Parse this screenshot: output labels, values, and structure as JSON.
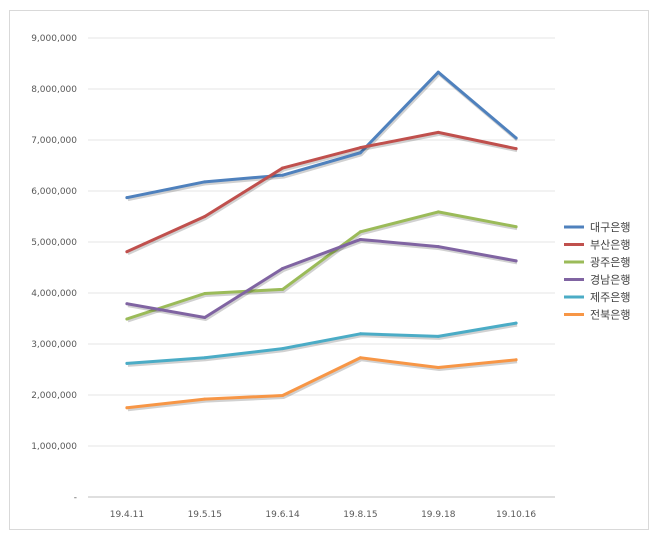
{
  "chart_data": {
    "type": "line",
    "title": "",
    "xlabel": "",
    "ylabel": "",
    "categories": [
      "19.4.11",
      "19.5.15",
      "19.6.14",
      "19.8.15",
      "19.9.18",
      "19.10.16"
    ],
    "ylim": [
      0,
      9000000
    ],
    "yticks": [
      0,
      1000000,
      2000000,
      3000000,
      4000000,
      5000000,
      6000000,
      7000000,
      8000000,
      9000000
    ],
    "ytick_labels": [
      "-",
      "1,000,000",
      "2,000,000",
      "3,000,000",
      "4,000,000",
      "5,000,000",
      "6,000,000",
      "7,000,000",
      "8,000,000",
      "9,000,000"
    ],
    "grid": true,
    "legend_position": "right",
    "series": [
      {
        "name": "대구은행",
        "color": "#4f81bd",
        "values": [
          5870000,
          6180000,
          6310000,
          6750000,
          8330000,
          7040000
        ]
      },
      {
        "name": "부산은행",
        "color": "#c0504d",
        "values": [
          4810000,
          5500000,
          6450000,
          6850000,
          7150000,
          6830000
        ]
      },
      {
        "name": "광주은행",
        "color": "#9bbb59",
        "values": [
          3490000,
          3990000,
          4070000,
          5200000,
          5590000,
          5300000
        ]
      },
      {
        "name": "경남은행",
        "color": "#8064a2",
        "values": [
          3790000,
          3520000,
          4480000,
          5050000,
          4910000,
          4630000
        ]
      },
      {
        "name": "제주은행",
        "color": "#4bacc6",
        "values": [
          2620000,
          2730000,
          2910000,
          3200000,
          3150000,
          3410000
        ]
      },
      {
        "name": "전북은행",
        "color": "#f79646",
        "values": [
          1750000,
          1920000,
          1990000,
          2730000,
          2540000,
          2690000
        ]
      }
    ]
  }
}
